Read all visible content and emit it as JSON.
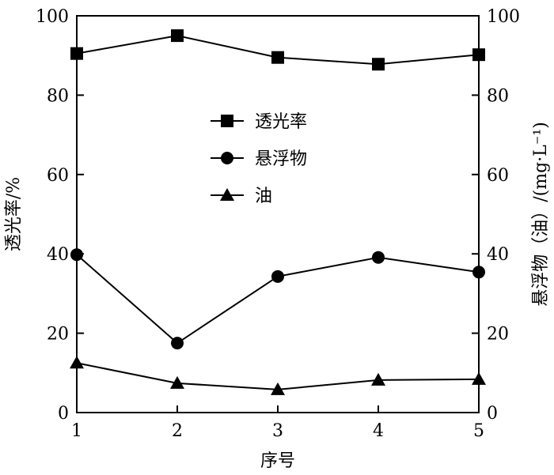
{
  "chart_data": {
    "type": "line",
    "x": [
      1,
      2,
      3,
      4,
      5
    ],
    "xlabel": "序号",
    "ylabel_left": "透光率/%",
    "ylabel_right": "悬浮物（油）/(mg·L⁻¹)",
    "xlim": [
      1,
      5
    ],
    "ylim_left": [
      0,
      100
    ],
    "ylim_right": [
      0,
      100
    ],
    "x_ticks": [
      "1",
      "2",
      "3",
      "4",
      "5"
    ],
    "y_ticks": [
      "0",
      "20",
      "40",
      "60",
      "80",
      "100"
    ],
    "grid": false,
    "legend_position": "center",
    "series": [
      {
        "name": "透光率",
        "marker": "square",
        "axis": "left",
        "values": [
          90.5,
          95,
          89.5,
          87.8,
          90.2
        ]
      },
      {
        "name": "悬浮物",
        "marker": "circle",
        "axis": "right",
        "values": [
          39.8,
          17.5,
          34.3,
          39.1,
          35.4
        ]
      },
      {
        "name": "油",
        "marker": "triangle",
        "axis": "right",
        "values": [
          12.5,
          7.4,
          5.8,
          8.2,
          8.4
        ]
      }
    ],
    "colors": {
      "line": "#000000",
      "background": "#ffffff"
    }
  }
}
